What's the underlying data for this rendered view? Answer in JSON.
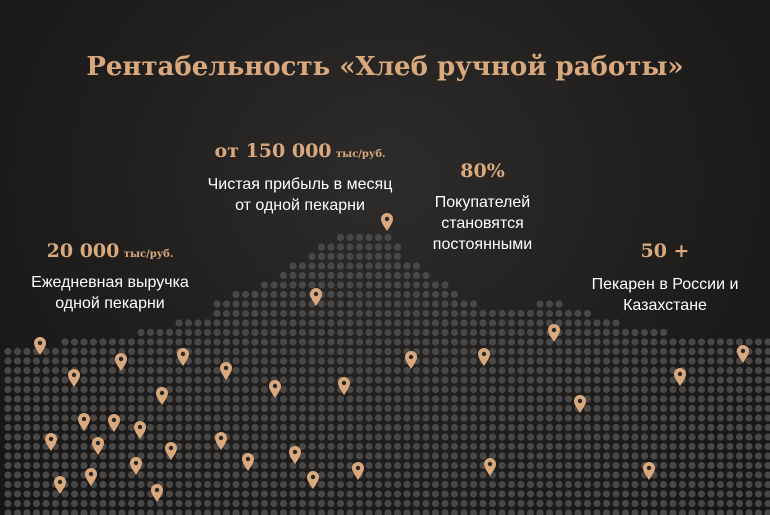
{
  "title": "Рентабельность «Хлеб ручной работы»",
  "stats": [
    {
      "number": "20 000",
      "unit": "тыс/руб.",
      "description": "Ежедневная выручка одной пекарни"
    },
    {
      "number": "от 150 000",
      "unit": "тыс/руб.",
      "description": "Чистая прибыль в месяц от одной пекарни"
    },
    {
      "number": "80%",
      "unit": "",
      "description": "Покупателей становятся постоянными"
    },
    {
      "number": "50 +",
      "unit": "",
      "description": "Пекарен в России и Казахстане"
    }
  ],
  "colors": {
    "accent": "#d9a97d",
    "background": "#1f1e1d",
    "map_dot": "#4a4847",
    "text": "#ffffff"
  },
  "icons": [
    "location-pin-icon"
  ]
}
